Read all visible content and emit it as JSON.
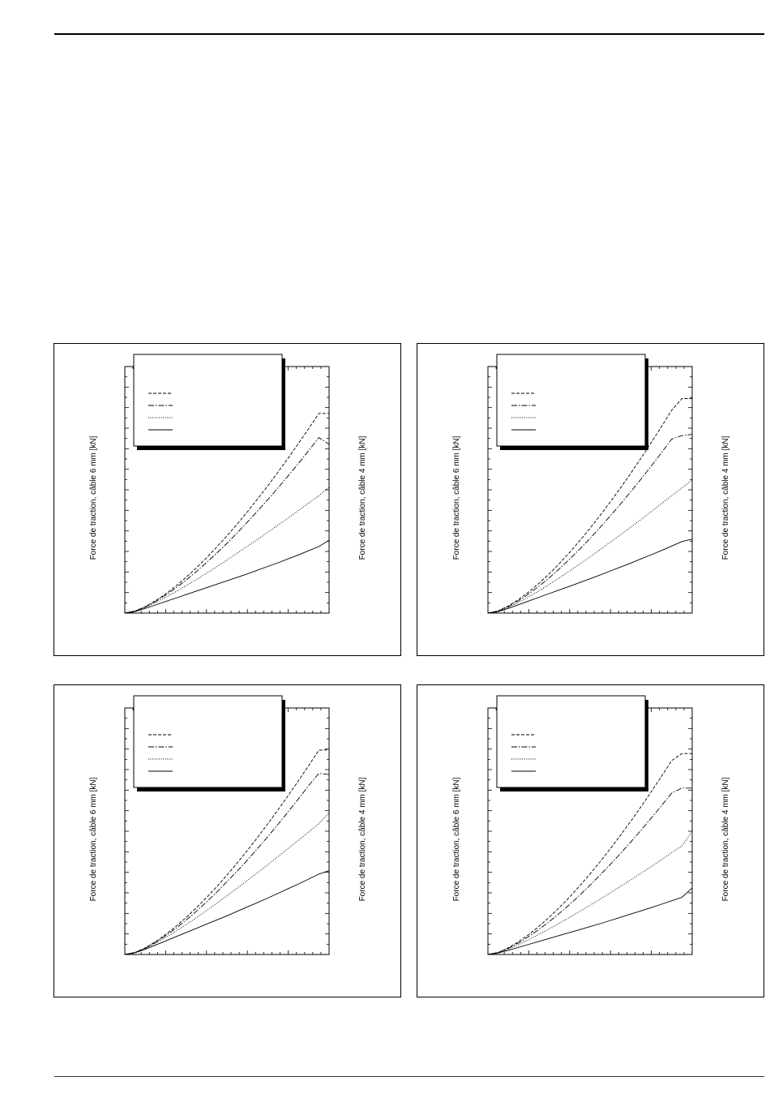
{
  "page": {
    "header_rule": true,
    "footer_rule": true
  },
  "chart_data": [
    {
      "type": "line",
      "ylabel_left": "Force de traction, câble 6 mm [kN]",
      "ylabel_right": "Force de traction, câble 4 mm [kN]",
      "x": [
        0,
        0.05,
        0.1,
        0.15,
        0.2,
        0.25,
        0.3,
        0.35,
        0.4,
        0.45,
        0.5,
        0.55,
        0.6,
        0.65,
        0.7,
        0.75,
        0.8,
        0.85,
        0.9,
        0.95,
        1
      ],
      "xlim": [
        0,
        1
      ],
      "ylim": [
        0,
        1
      ],
      "legend_position": "top-left",
      "series": [
        {
          "style": "dashed",
          "values": [
            0,
            0.008,
            0.026,
            0.05,
            0.078,
            0.11,
            0.145,
            0.183,
            0.224,
            0.268,
            0.313,
            0.361,
            0.411,
            0.463,
            0.516,
            0.572,
            0.629,
            0.688,
            0.748,
            0.81,
            0.81
          ]
        },
        {
          "style": "dashdot",
          "values": [
            0,
            0.008,
            0.025,
            0.047,
            0.073,
            0.102,
            0.134,
            0.168,
            0.205,
            0.243,
            0.283,
            0.325,
            0.369,
            0.414,
            0.46,
            0.508,
            0.557,
            0.607,
            0.659,
            0.712,
            0.685
          ]
        },
        {
          "style": "dotted",
          "values": [
            0,
            0.007,
            0.023,
            0.042,
            0.064,
            0.087,
            0.111,
            0.136,
            0.162,
            0.188,
            0.215,
            0.243,
            0.271,
            0.299,
            0.328,
            0.357,
            0.386,
            0.416,
            0.446,
            0.476,
            0.51
          ]
        },
        {
          "style": "solid",
          "values": [
            0,
            0.006,
            0.019,
            0.033,
            0.047,
            0.061,
            0.075,
            0.089,
            0.103,
            0.117,
            0.131,
            0.145,
            0.159,
            0.174,
            0.189,
            0.204,
            0.22,
            0.236,
            0.253,
            0.27,
            0.295
          ]
        }
      ]
    },
    {
      "type": "line",
      "ylabel_left": "Force de traction, câble 6 mm [kN]",
      "ylabel_right": "Force de traction, câble 4 mm [kN]",
      "x": [
        0,
        0.05,
        0.1,
        0.15,
        0.2,
        0.25,
        0.3,
        0.35,
        0.4,
        0.45,
        0.5,
        0.55,
        0.6,
        0.65,
        0.7,
        0.75,
        0.8,
        0.85,
        0.9,
        0.95,
        1
      ],
      "xlim": [
        0,
        1
      ],
      "ylim": [
        0,
        1
      ],
      "legend_position": "top-left",
      "series": [
        {
          "style": "dashed",
          "values": [
            0,
            0.009,
            0.029,
            0.055,
            0.086,
            0.121,
            0.159,
            0.201,
            0.246,
            0.294,
            0.344,
            0.397,
            0.452,
            0.509,
            0.568,
            0.629,
            0.692,
            0.757,
            0.823,
            0.87,
            0.87
          ]
        },
        {
          "style": "dashdot",
          "values": [
            0,
            0.008,
            0.026,
            0.05,
            0.078,
            0.109,
            0.143,
            0.18,
            0.219,
            0.26,
            0.303,
            0.348,
            0.395,
            0.443,
            0.493,
            0.544,
            0.597,
            0.651,
            0.706,
            0.72,
            0.725
          ]
        },
        {
          "style": "dotted",
          "values": [
            0,
            0.007,
            0.023,
            0.043,
            0.066,
            0.09,
            0.116,
            0.143,
            0.171,
            0.199,
            0.228,
            0.258,
            0.288,
            0.318,
            0.349,
            0.38,
            0.412,
            0.444,
            0.476,
            0.508,
            0.54
          ]
        },
        {
          "style": "solid",
          "values": [
            0,
            0.006,
            0.019,
            0.034,
            0.049,
            0.064,
            0.079,
            0.094,
            0.109,
            0.124,
            0.139,
            0.155,
            0.171,
            0.187,
            0.203,
            0.22,
            0.237,
            0.254,
            0.272,
            0.29,
            0.3
          ]
        }
      ]
    },
    {
      "type": "line",
      "ylabel_left": "Force de traction, câble 6 mm [kN]",
      "ylabel_right": "Force de traction, câble 4 mm [kN]",
      "x": [
        0,
        0.05,
        0.1,
        0.15,
        0.2,
        0.25,
        0.3,
        0.35,
        0.4,
        0.45,
        0.5,
        0.55,
        0.6,
        0.65,
        0.7,
        0.75,
        0.8,
        0.85,
        0.9,
        0.95,
        1
      ],
      "xlim": [
        0,
        1
      ],
      "ylim": [
        0,
        1
      ],
      "legend_position": "top-left",
      "series": [
        {
          "style": "dashed",
          "values": [
            0,
            0.008,
            0.027,
            0.052,
            0.081,
            0.114,
            0.15,
            0.189,
            0.231,
            0.275,
            0.322,
            0.371,
            0.422,
            0.475,
            0.53,
            0.587,
            0.645,
            0.705,
            0.766,
            0.829,
            0.83
          ]
        },
        {
          "style": "dashdot",
          "values": [
            0,
            0.008,
            0.026,
            0.049,
            0.076,
            0.106,
            0.139,
            0.175,
            0.213,
            0.253,
            0.295,
            0.338,
            0.383,
            0.43,
            0.478,
            0.528,
            0.579,
            0.631,
            0.685,
            0.735,
            0.73
          ]
        },
        {
          "style": "dotted",
          "values": [
            0,
            0.008,
            0.024,
            0.045,
            0.069,
            0.094,
            0.121,
            0.149,
            0.178,
            0.208,
            0.238,
            0.269,
            0.3,
            0.332,
            0.364,
            0.397,
            0.43,
            0.463,
            0.497,
            0.531,
            0.575
          ]
        },
        {
          "style": "solid",
          "values": [
            0,
            0.007,
            0.021,
            0.038,
            0.055,
            0.072,
            0.089,
            0.106,
            0.123,
            0.14,
            0.157,
            0.175,
            0.193,
            0.211,
            0.229,
            0.248,
            0.267,
            0.286,
            0.306,
            0.326,
            0.34
          ]
        }
      ]
    },
    {
      "type": "line",
      "ylabel_left": "Force de traction, câble 6 mm [kN]",
      "ylabel_right": "Force de traction, câble 4 mm [kN]",
      "x": [
        0,
        0.05,
        0.1,
        0.15,
        0.2,
        0.25,
        0.3,
        0.35,
        0.4,
        0.45,
        0.5,
        0.55,
        0.6,
        0.65,
        0.7,
        0.75,
        0.8,
        0.85,
        0.9,
        0.95,
        1
      ],
      "xlim": [
        0,
        1
      ],
      "ylim": [
        0,
        1
      ],
      "legend_position": "top-left",
      "series": [
        {
          "style": "dashed",
          "values": [
            0,
            0.008,
            0.027,
            0.052,
            0.081,
            0.114,
            0.151,
            0.191,
            0.233,
            0.279,
            0.327,
            0.377,
            0.43,
            0.485,
            0.541,
            0.6,
            0.661,
            0.723,
            0.787,
            0.815,
            0.815
          ]
        },
        {
          "style": "dashdot",
          "values": [
            0,
            0.008,
            0.025,
            0.047,
            0.073,
            0.102,
            0.133,
            0.167,
            0.203,
            0.241,
            0.281,
            0.323,
            0.366,
            0.411,
            0.457,
            0.505,
            0.554,
            0.604,
            0.655,
            0.675,
            0.675
          ]
        },
        {
          "style": "dotted",
          "values": [
            0,
            0.007,
            0.022,
            0.04,
            0.06,
            0.082,
            0.104,
            0.127,
            0.151,
            0.175,
            0.2,
            0.225,
            0.251,
            0.277,
            0.303,
            0.33,
            0.357,
            0.385,
            0.413,
            0.441,
            0.5
          ]
        },
        {
          "style": "solid",
          "values": [
            0,
            0.006,
            0.017,
            0.029,
            0.041,
            0.053,
            0.065,
            0.077,
            0.089,
            0.101,
            0.113,
            0.125,
            0.138,
            0.151,
            0.164,
            0.177,
            0.19,
            0.204,
            0.218,
            0.232,
            0.27
          ]
        }
      ]
    }
  ]
}
